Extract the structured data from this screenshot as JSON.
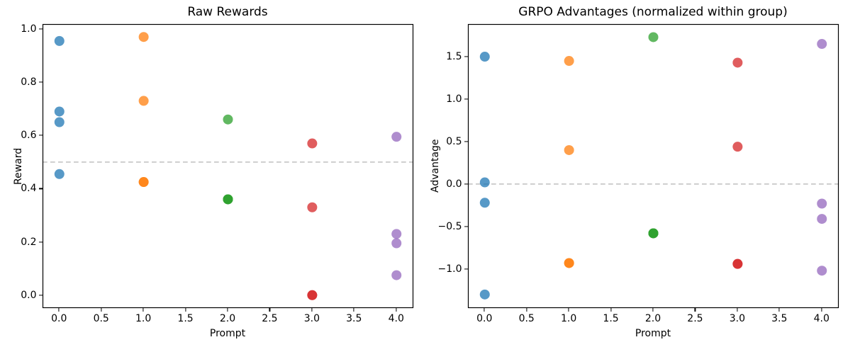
{
  "figure": {
    "background": "#ffffff",
    "text_color": "#000000",
    "spine_color": "#000000"
  },
  "chart_data": [
    {
      "type": "scatter",
      "title": "Raw Rewards",
      "xlabel": "Prompt",
      "ylabel": "Reward",
      "xlim": [
        -0.2,
        4.2
      ],
      "ylim": [
        -0.0485,
        1.0185
      ],
      "grid": false,
      "legend": null,
      "xticks": {
        "values": [
          0.0,
          0.5,
          1.0,
          1.5,
          2.0,
          2.5,
          3.0,
          3.5,
          4.0
        ],
        "labels": [
          "0.0",
          "0.5",
          "1.0",
          "1.5",
          "2.0",
          "2.5",
          "3.0",
          "3.5",
          "4.0"
        ]
      },
      "yticks": {
        "values": [
          0.0,
          0.2,
          0.4,
          0.6,
          0.8,
          1.0
        ],
        "labels": [
          "0.0",
          "0.2",
          "0.4",
          "0.6",
          "0.8",
          "1.0"
        ]
      },
      "reference_line": {
        "y": 0.5,
        "color": "#808080",
        "opacity": 0.5,
        "dash": [
          6.7,
          4.3
        ],
        "width": 1.5
      },
      "marker": {
        "radius_px": 7,
        "opacity": 0.75
      },
      "series": [
        {
          "name": "Prompt 0",
          "color": "#1f77b4",
          "x": [
            0,
            0,
            0,
            0
          ],
          "y": [
            0.955,
            0.69,
            0.65,
            0.455
          ]
        },
        {
          "name": "Prompt 1",
          "color": "#ff7f0e",
          "x": [
            1,
            1,
            1,
            1
          ],
          "y": [
            0.97,
            0.73,
            0.425,
            0.425
          ]
        },
        {
          "name": "Prompt 2",
          "color": "#2ca02c",
          "x": [
            2,
            2,
            2,
            2
          ],
          "y": [
            0.66,
            0.36,
            0.36,
            0.36
          ]
        },
        {
          "name": "Prompt 3",
          "color": "#d62728",
          "x": [
            3,
            3,
            3,
            3
          ],
          "y": [
            0.57,
            0.33,
            0.0,
            0.0
          ]
        },
        {
          "name": "Prompt 4",
          "color": "#9467bd",
          "x": [
            4,
            4,
            4,
            4
          ],
          "y": [
            0.595,
            0.23,
            0.195,
            0.075
          ]
        }
      ]
    },
    {
      "type": "scatter",
      "title": "GRPO Advantages (normalized within group)",
      "xlabel": "Prompt",
      "ylabel": "Advantage",
      "xlim": [
        -0.2,
        4.2
      ],
      "ylim": [
        -1.46,
        1.884
      ],
      "grid": false,
      "legend": null,
      "xticks": {
        "values": [
          0.0,
          0.5,
          1.0,
          1.5,
          2.0,
          2.5,
          3.0,
          3.5,
          4.0
        ],
        "labels": [
          "0.0",
          "0.5",
          "1.0",
          "1.5",
          "2.0",
          "2.5",
          "3.0",
          "3.5",
          "4.0"
        ]
      },
      "yticks": {
        "values": [
          -1.0,
          -0.5,
          0.0,
          0.5,
          1.0,
          1.5
        ],
        "labels": [
          "−1.0",
          "−0.5",
          "0.0",
          "0.5",
          "1.0",
          "1.5"
        ]
      },
      "reference_line": {
        "y": 0.0,
        "color": "#808080",
        "opacity": 0.5,
        "dash": [
          6.7,
          4.3
        ],
        "width": 1.5
      },
      "marker": {
        "radius_px": 7,
        "opacity": 0.75
      },
      "series": [
        {
          "name": "Prompt 0",
          "color": "#1f77b4",
          "x": [
            0,
            0,
            0,
            0
          ],
          "y": [
            1.5,
            0.02,
            -0.22,
            -1.3
          ]
        },
        {
          "name": "Prompt 1",
          "color": "#ff7f0e",
          "x": [
            1,
            1,
            1,
            1
          ],
          "y": [
            1.45,
            0.4,
            -0.93,
            -0.93
          ]
        },
        {
          "name": "Prompt 2",
          "color": "#2ca02c",
          "x": [
            2,
            2,
            2,
            2
          ],
          "y": [
            1.73,
            -0.58,
            -0.58,
            -0.58
          ]
        },
        {
          "name": "Prompt 3",
          "color": "#d62728",
          "x": [
            3,
            3,
            3,
            3
          ],
          "y": [
            1.43,
            0.44,
            -0.94,
            -0.94
          ]
        },
        {
          "name": "Prompt 4",
          "color": "#9467bd",
          "x": [
            4,
            4,
            4,
            4
          ],
          "y": [
            1.65,
            -0.23,
            -0.41,
            -1.02
          ]
        }
      ]
    }
  ]
}
